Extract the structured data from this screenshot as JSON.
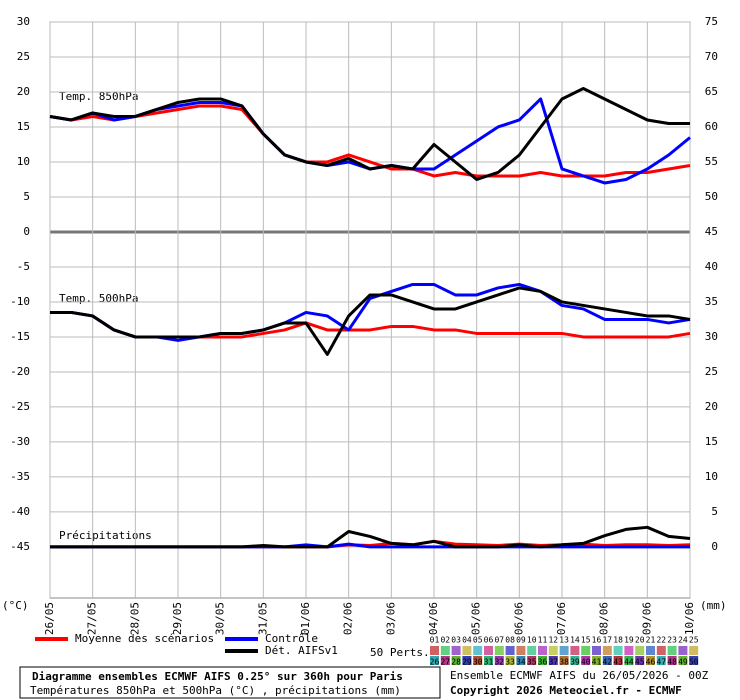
{
  "chart_data": {
    "type": "line",
    "panel_labels": [
      "Temp. 850hPa",
      "Temp. 500hPa",
      "Précipitations"
    ],
    "categories": [
      "26/05",
      null,
      "27/05",
      null,
      "28/05",
      null,
      "29/05",
      null,
      "30/05",
      null,
      "31/05",
      null,
      "01/06",
      null,
      "02/06",
      null,
      "03/06",
      null,
      "04/06",
      null,
      "05/06",
      null,
      "06/06",
      null,
      "07/06",
      null,
      "08/06",
      null,
      "09/06",
      null,
      "10/06"
    ],
    "ylabel": "(°C)",
    "y2label": "(mm)",
    "ylim": [
      -52.3,
      30
    ],
    "yticks": [
      30,
      25,
      20,
      15,
      10,
      5,
      0,
      -5,
      -10,
      -15,
      -20,
      -25,
      -30,
      -35,
      -40,
      -45
    ],
    "y2lim": [
      -7.3,
      75
    ],
    "y2ticks": [
      75,
      70,
      65,
      60,
      55,
      50,
      45,
      40,
      35,
      30,
      25,
      20,
      15,
      10,
      5,
      0
    ],
    "grid": true,
    "series": [
      {
        "name": "Moyenne des scénarios",
        "color": "#ff0000",
        "t850": [
          16.5,
          16,
          16.5,
          16,
          16.5,
          17,
          17.5,
          18,
          18,
          17.5,
          14,
          11,
          10,
          10,
          11,
          10,
          9,
          9,
          8,
          8.5,
          8,
          8,
          8,
          8.5,
          8,
          8,
          8,
          8.5,
          8.5,
          9,
          9.5
        ],
        "t500": [
          -11.5,
          -11.5,
          -12,
          -14,
          -15,
          -15,
          -15,
          -15,
          -15,
          -15,
          -14.5,
          -14,
          -13,
          -14,
          -14,
          -14,
          -13.5,
          -13.5,
          -14,
          -14,
          -14.5,
          -14.5,
          -14.5,
          -14.5,
          -14.5,
          -15,
          -15,
          -15,
          -15,
          -15,
          -14.5
        ],
        "precip": [
          0,
          0,
          0,
          0,
          0,
          0,
          0,
          0,
          0,
          0,
          0,
          0,
          0,
          0,
          0.3,
          0.2,
          0.5,
          0.3,
          0.8,
          0.4,
          0.3,
          0.2,
          0.4,
          0.2,
          0.3,
          0.4,
          0.2,
          0.3,
          0.3,
          0.2,
          0.3
        ]
      },
      {
        "name": "Contrôle",
        "color": "#0000ff",
        "t850": [
          16.5,
          16,
          17,
          16,
          16.5,
          17.5,
          18,
          18.5,
          18.5,
          18,
          14,
          11,
          10,
          9.5,
          10,
          9,
          9.5,
          9,
          9,
          11,
          13,
          15,
          16,
          19,
          9,
          8,
          7,
          7.5,
          9,
          11,
          13.5
        ],
        "t500": [
          -11.5,
          -11.5,
          -12,
          -14,
          -15,
          -15,
          -15.5,
          -15,
          -14.5,
          -14.5,
          -14,
          -13,
          -11.5,
          -12,
          -14,
          -9.5,
          -8.5,
          -7.5,
          -7.5,
          -9,
          -9,
          -8,
          -7.5,
          -8.5,
          -10.5,
          -11,
          -12.5,
          -12.5,
          -12.5,
          -13,
          -12.5
        ],
        "precip": [
          0,
          0,
          0,
          0,
          0,
          0,
          0,
          0,
          0,
          0,
          0,
          0,
          0.3,
          0,
          0.4,
          0,
          0,
          0,
          0,
          0,
          0,
          0,
          0,
          0,
          0,
          0,
          0,
          0,
          0,
          0,
          0
        ]
      },
      {
        "name": "Dét. AIFSv1",
        "color": "#000000",
        "t850": [
          16.5,
          16,
          17,
          16.5,
          16.5,
          17.5,
          18.5,
          19,
          19,
          18,
          14,
          11,
          10,
          9.5,
          10.5,
          9,
          9.5,
          9,
          12.5,
          10,
          7.5,
          8.5,
          11,
          15,
          19,
          20.5,
          19,
          17.5,
          16,
          15.5,
          15.5
        ],
        "t500": [
          -11.5,
          -11.5,
          -12,
          -14,
          -15,
          -15,
          -15,
          -15,
          -14.5,
          -14.5,
          -14,
          -13,
          -13,
          -17.5,
          -12,
          -9,
          -9,
          -10,
          -11,
          -11,
          -10,
          -9,
          -8,
          -8.5,
          -10,
          -10.5,
          -11,
          -11.5,
          -12,
          -12,
          -12.5
        ],
        "precip": [
          0,
          0,
          0,
          0,
          0,
          0,
          0,
          0,
          0,
          0,
          0.2,
          0,
          0,
          0,
          2.2,
          1.5,
          0.5,
          0.3,
          0.8,
          0,
          0,
          0,
          0.3,
          0,
          0.3,
          0.5,
          1.6,
          2.5,
          2.8,
          1.5,
          1.2
        ]
      }
    ],
    "perts_label": "50 Perts.",
    "members": [
      "01",
      "02",
      "03",
      "04",
      "05",
      "06",
      "07",
      "08",
      "09",
      "10",
      "11",
      "12",
      "13",
      "14",
      "15",
      "16",
      "17",
      "18",
      "19",
      "20",
      "21",
      "22",
      "23",
      "24",
      "25",
      "26",
      "27",
      "28",
      "29",
      "30",
      "31",
      "32",
      "33",
      "34",
      "35",
      "36",
      "37",
      "38",
      "39",
      "40",
      "41",
      "42",
      "43",
      "44",
      "45",
      "46",
      "47",
      "48",
      "49",
      "50"
    ]
  },
  "footer": {
    "title": "Diagramme ensembles ECMWF AIFS 0.25° sur 360h pour Paris",
    "subtitle": "Températures 850hPa et 500hPa (°C) , précipitations (mm)",
    "run": "Ensemble ECMWF AIFS du 26/05/2026 - 00Z",
    "copyright": "Copyright 2026 Meteociel.fr - ECMWF"
  }
}
